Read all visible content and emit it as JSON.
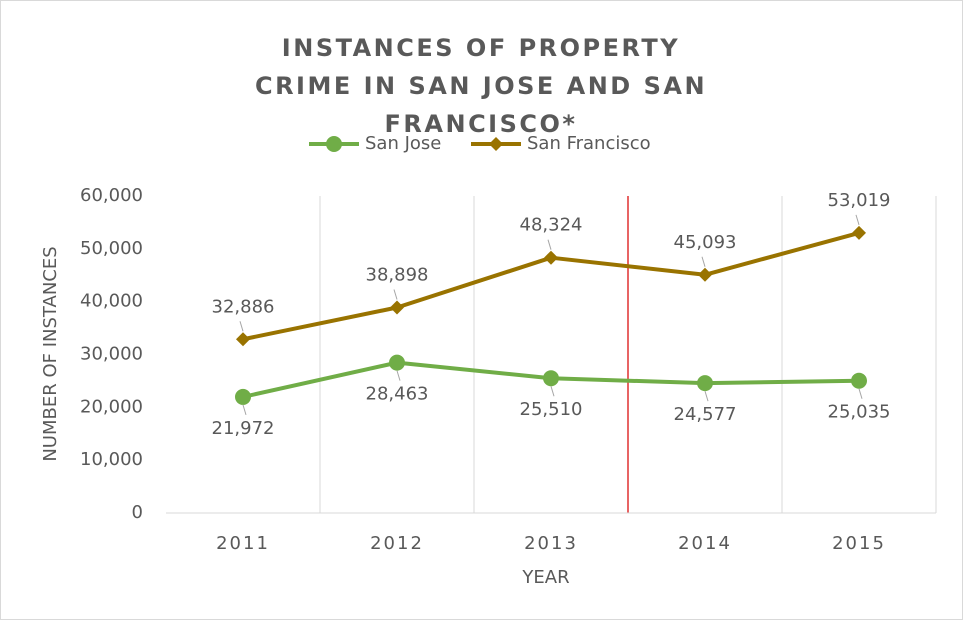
{
  "chart_data": {
    "type": "line",
    "title": "INSTANCES OF PROPERTY CRIME IN SAN JOSE AND SAN FRANCISCO*",
    "xlabel": "YEAR",
    "ylabel": "NUMBER OF INSTANCES",
    "categories": [
      "2011",
      "2012",
      "2013",
      "2014",
      "2015"
    ],
    "series": [
      {
        "name": "San Jose",
        "color": "#70ad47",
        "marker": "circle",
        "values": [
          21972,
          28463,
          25510,
          24577,
          25035
        ],
        "value_labels": [
          "21,972",
          "28,463",
          "25,510",
          "24,577",
          "25,035"
        ]
      },
      {
        "name": "San Francisco",
        "color": "#997300",
        "marker": "diamond",
        "values": [
          32886,
          38898,
          48324,
          45093,
          53019
        ],
        "value_labels": [
          "32,886",
          "38,898",
          "48,324",
          "45,093",
          "53,019"
        ]
      }
    ],
    "ylim": [
      0,
      60000
    ],
    "yticks": [
      0,
      {
        "value": 10000,
        "label": "10,000"
      },
      {
        "value": 20000,
        "label": "20,000"
      },
      {
        "value": 30000,
        "label": "30,000"
      },
      {
        "value": 40000,
        "label": "40,000"
      },
      {
        "value": 50000,
        "label": "50,000"
      },
      {
        "value": 60000,
        "label": "60,000"
      }
    ],
    "legend": "top"
  }
}
